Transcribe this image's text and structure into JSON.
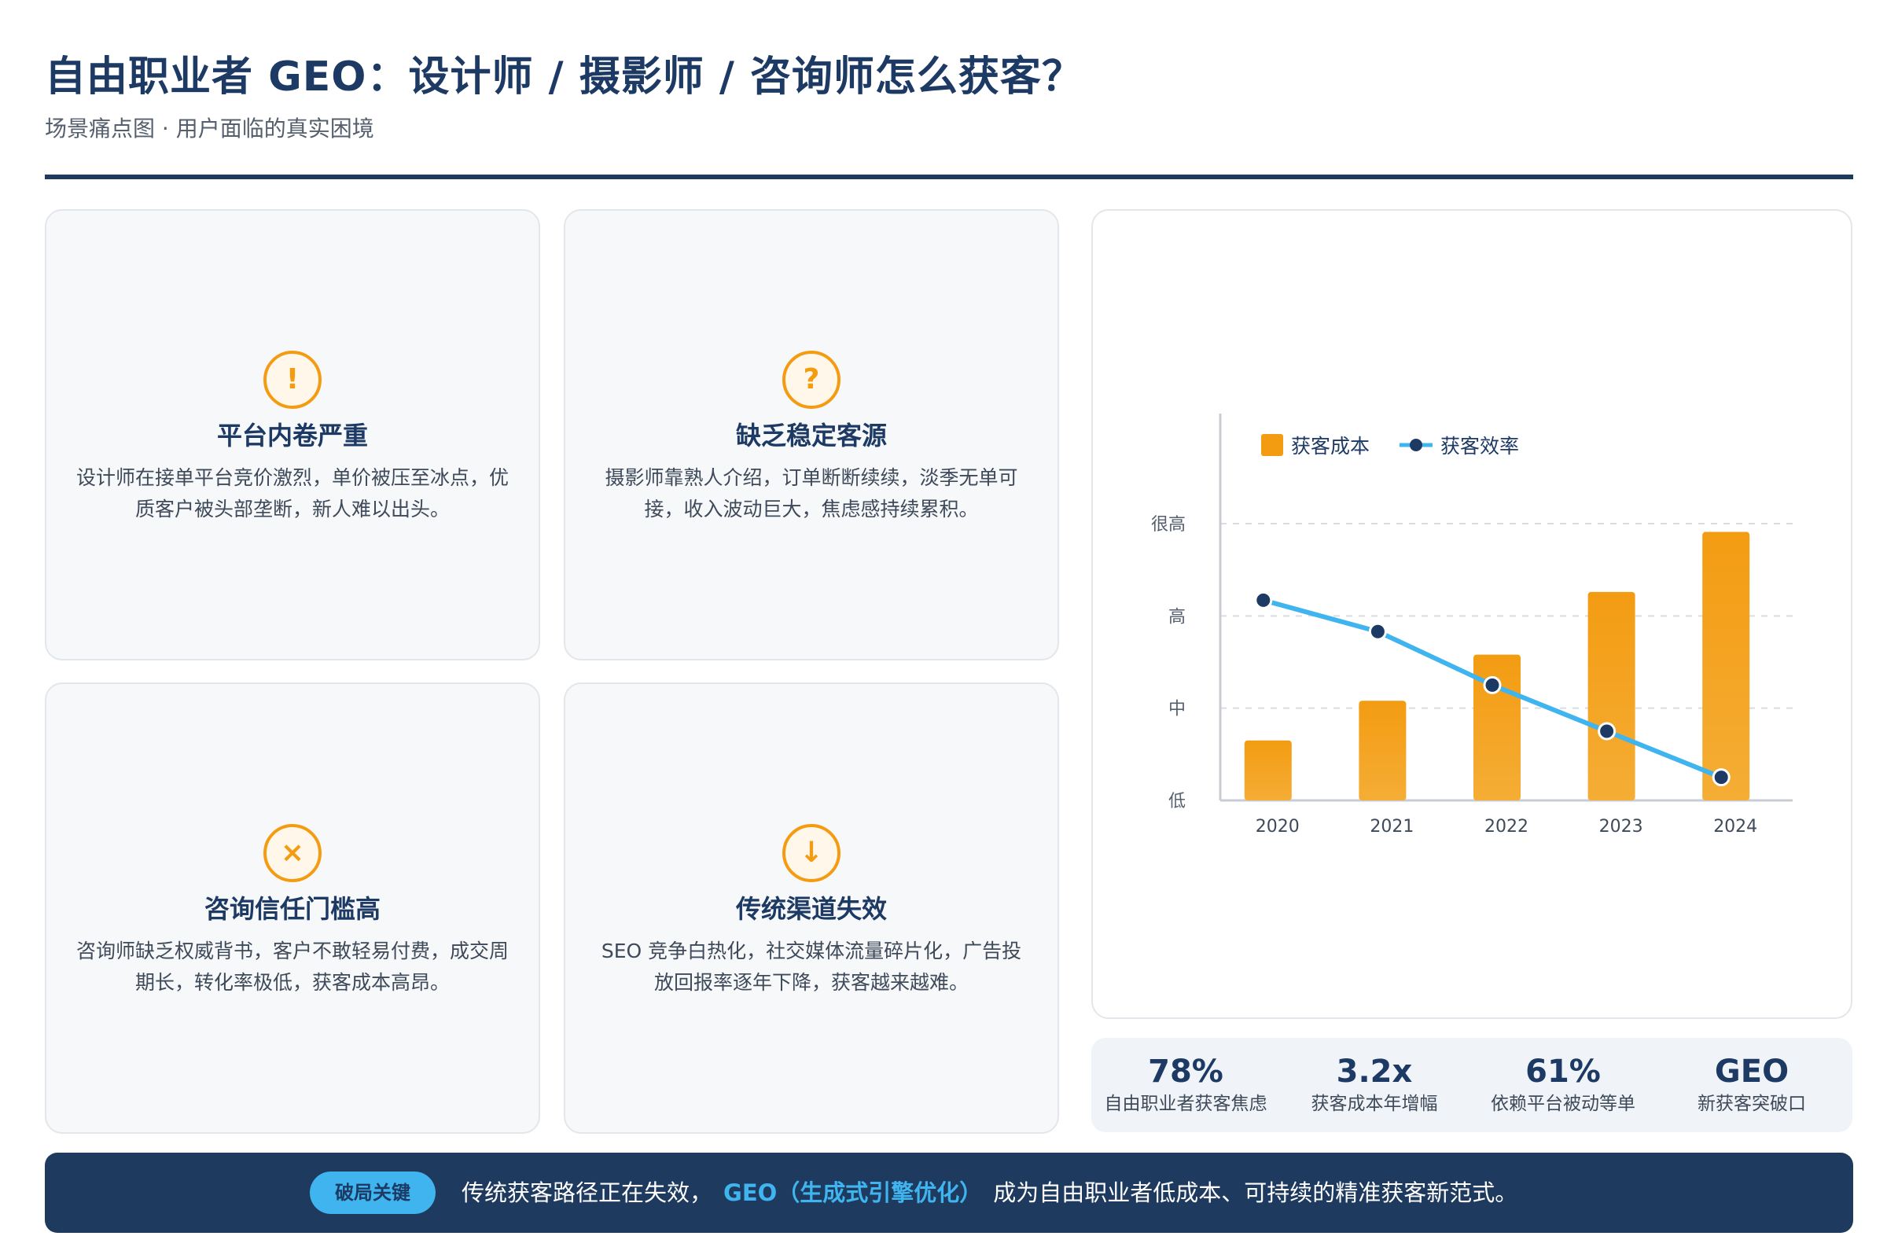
{
  "header": {
    "title": "自由职业者 GEO：设计师 / 摄影师 / 咨询师怎么获客？",
    "subtitle": "场景痛点图 · 用户面临的真实困境"
  },
  "cards": [
    {
      "icon": "!",
      "icon_name": "exclamation-icon",
      "title": "平台内卷严重",
      "desc": "设计师在接单平台竞价激烈，单价被压至冰点，优质客户被头部垄断，新人难以出头。"
    },
    {
      "icon": "?",
      "icon_name": "question-icon",
      "title": "缺乏稳定客源",
      "desc": "摄影师靠熟人介绍，订单断断续续，淡季无单可接，收入波动巨大，焦虑感持续累积。"
    },
    {
      "icon": "×",
      "icon_name": "cross-icon",
      "title": "咨询信任门槛高",
      "desc": "咨询师缺乏权威背书，客户不敢轻易付费，成交周期长，转化率极低，获客成本高昂。"
    },
    {
      "icon": "↓",
      "icon_name": "arrow-down-icon",
      "title": "传统渠道失效",
      "desc": "SEO 竞争白热化，社交媒体流量碎片化，广告投放回报率逐年下降，获客越来越难。"
    }
  ],
  "chart_data": {
    "type": "bar",
    "categories": [
      "2020",
      "2021",
      "2022",
      "2023",
      "2024"
    ],
    "series": [
      {
        "name": "获客成本",
        "type": "bar",
        "values": [
          0.65,
          1.08,
          1.58,
          2.26,
          2.91
        ]
      },
      {
        "name": "获客效率",
        "type": "line",
        "values": [
          2.17,
          1.83,
          1.25,
          0.75,
          0.25
        ]
      }
    ],
    "y_ticks": [
      {
        "value": 0,
        "label": "低"
      },
      {
        "value": 1,
        "label": "中"
      },
      {
        "value": 2,
        "label": "高"
      },
      {
        "value": 3,
        "label": "很高"
      }
    ],
    "ylim": [
      0,
      3
    ],
    "grid": true,
    "legend_position": "top-left",
    "colors": {
      "bar_gradient_start": "#f5ad35",
      "bar_gradient_end": "#f39c12",
      "line": "#3fb4ee",
      "marker": "#1c3a64"
    }
  },
  "stats": [
    {
      "value": "78%",
      "label": "自由职业者获客焦虑"
    },
    {
      "value": "3.2x",
      "label": "获客成本年增幅"
    },
    {
      "value": "61%",
      "label": "依赖平台被动等单"
    },
    {
      "value": "GEO",
      "label": "新获客突破口"
    }
  ],
  "banner": {
    "tag": "破局关键",
    "text_before": "传统获客路径正在失效，",
    "highlight": "GEO（生成式引擎优化）",
    "text_after": "成为自由职业者低成本、可持续的精准获客新范式。"
  },
  "colors": {
    "navy": "#1f3a5f",
    "accent_orange": "#f39c12",
    "accent_blue": "#3fb4ee"
  }
}
